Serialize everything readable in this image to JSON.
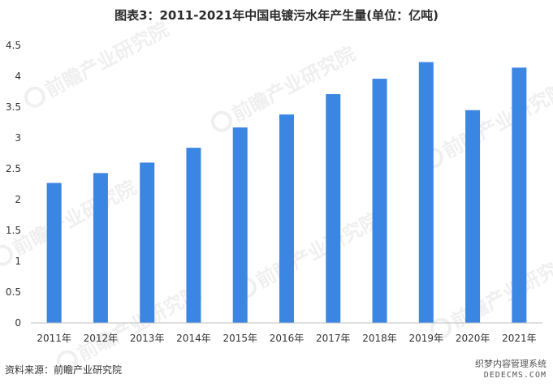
{
  "chart_data": {
    "type": "bar",
    "title": "图表3：2011-2021年中国电镀污水年产生量(单位：亿吨)",
    "categories": [
      "2011年",
      "2012年",
      "2013年",
      "2014年",
      "2015年",
      "2016年",
      "2017年",
      "2018年",
      "2019年",
      "2020年",
      "2021年"
    ],
    "values": [
      2.27,
      2.43,
      2.6,
      2.84,
      3.17,
      3.38,
      3.71,
      3.96,
      4.23,
      3.45,
      4.14
    ],
    "xlabel": "",
    "ylabel": "",
    "ylim": [
      0,
      4.5
    ],
    "yticks": [
      0,
      0.5,
      1,
      1.5,
      2,
      2.5,
      3,
      3.5,
      4,
      4.5
    ],
    "ytick_labels": [
      "0",
      "0.5",
      "1",
      "1.5",
      "2",
      "2.5",
      "3",
      "3.5",
      "4",
      "4.5"
    ],
    "grid": false,
    "legend": "none",
    "bar_color": "#3b86e3"
  },
  "source": "资料来源：前瞻产业研究院",
  "watermark": {
    "brand": "前瞻产业研究院",
    "site_label": "织梦内容管理系统",
    "site_domain": "DEDECMS.COM"
  }
}
